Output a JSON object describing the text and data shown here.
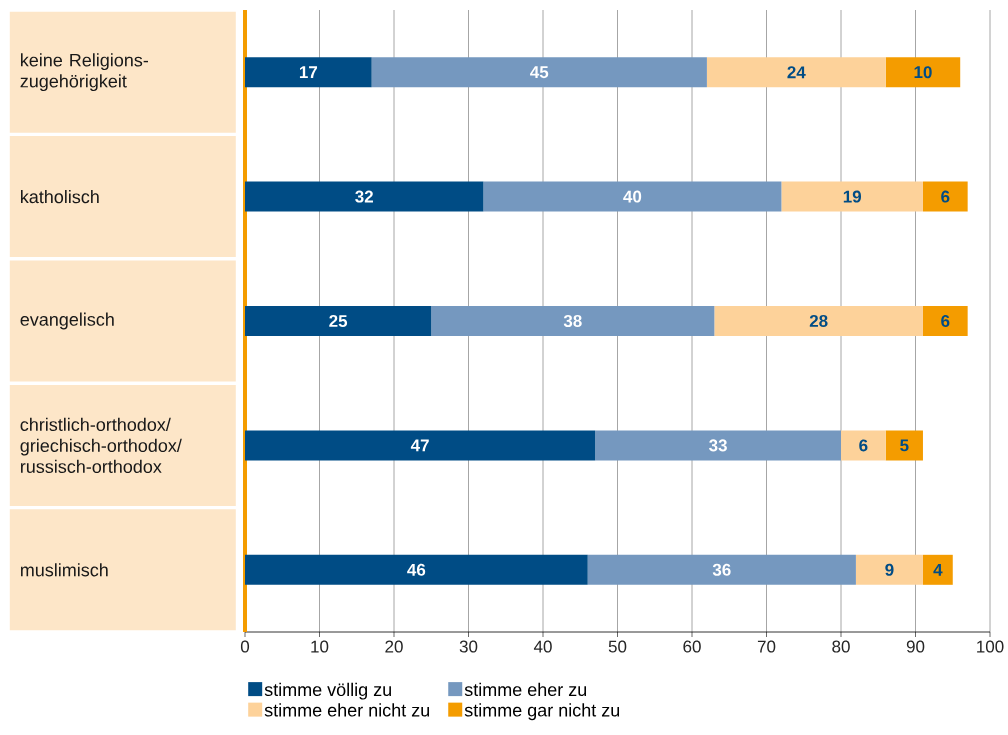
{
  "chart_data": {
    "type": "bar",
    "orientation": "horizontal",
    "stacked": true,
    "data_labels": true,
    "grid": "x",
    "legend": "bottom",
    "categories": [
      "keine Religions-zugehörigkeit",
      "katholisch",
      "evangelisch",
      "christlich-orthodox/ griechisch-orthodox/ russisch-orthodox",
      "muslimisch"
    ],
    "series": [
      {
        "name": "stimme völlig zu",
        "color": "#004c85",
        "values": [
          17,
          32,
          25,
          47,
          46
        ]
      },
      {
        "name": "stimme eher zu",
        "color": "#7598bf",
        "values": [
          45,
          40,
          38,
          33,
          36
        ]
      },
      {
        "name": "stimme eher nicht zu",
        "color": "#fdd29a",
        "values": [
          24,
          19,
          28,
          6,
          9
        ]
      },
      {
        "name": "stimme gar nicht zu",
        "color": "#f49c00",
        "values": [
          10,
          6,
          6,
          5,
          4
        ]
      }
    ],
    "xlim": [
      0,
      100
    ],
    "xticks": [
      0,
      10,
      20,
      30,
      40,
      50,
      60,
      70,
      80,
      90,
      100
    ]
  }
}
